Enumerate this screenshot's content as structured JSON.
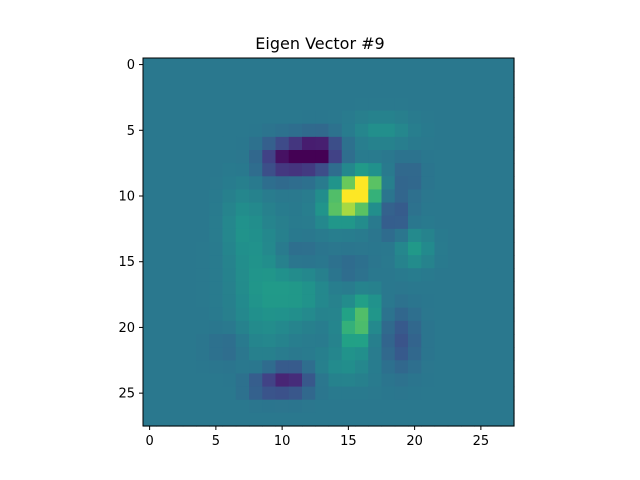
{
  "chart_data": {
    "type": "heatmap",
    "title": "Eigen Vector #9",
    "xlabel": "",
    "ylabel": "",
    "grid": false,
    "legend": "none",
    "colormap": "viridis",
    "image_size": [
      28,
      28
    ],
    "xlim": [
      -0.5,
      27.5
    ],
    "ylim": [
      27.5,
      -0.5
    ],
    "x_ticks": [
      0,
      5,
      10,
      15,
      20,
      25
    ],
    "y_ticks": [
      0,
      5,
      10,
      15,
      20,
      25
    ],
    "x_tick_labels": [
      "0",
      "5",
      "10",
      "15",
      "20",
      "25"
    ],
    "y_tick_labels": [
      "0",
      "5",
      "10",
      "15",
      "20",
      "25"
    ],
    "value_range": [
      -1,
      1
    ],
    "background_value": 0,
    "blobs": [
      {
        "row": 7.0,
        "col": 11.5,
        "value": -1.0,
        "sigma_r": 0.9,
        "sigma_c": 1.5
      },
      {
        "row": 6.5,
        "col": 13.0,
        "value": -0.55,
        "sigma_r": 0.8,
        "sigma_c": 1.0
      },
      {
        "row": 7.5,
        "col": 9.5,
        "value": -0.35,
        "sigma_r": 1.0,
        "sigma_c": 1.0
      },
      {
        "row": 10.0,
        "col": 15.5,
        "value": 1.0,
        "sigma_r": 1.1,
        "sigma_c": 1.1
      },
      {
        "row": 9.0,
        "col": 16.5,
        "value": 0.5,
        "sigma_r": 0.8,
        "sigma_c": 0.8
      },
      {
        "row": 11.0,
        "col": 14.0,
        "value": 0.4,
        "sigma_r": 1.0,
        "sigma_c": 1.0
      },
      {
        "row": 20.0,
        "col": 15.5,
        "value": 0.65,
        "sigma_r": 1.3,
        "sigma_c": 0.8
      },
      {
        "row": 18.5,
        "col": 16.5,
        "value": 0.35,
        "sigma_r": 1.0,
        "sigma_c": 0.7
      },
      {
        "row": 24.0,
        "col": 10.5,
        "value": -0.75,
        "sigma_r": 0.8,
        "sigma_c": 1.2
      },
      {
        "row": 24.5,
        "col": 8.5,
        "value": -0.3,
        "sigma_r": 0.7,
        "sigma_c": 1.0
      },
      {
        "row": 14.0,
        "col": 20.0,
        "value": 0.35,
        "sigma_r": 1.0,
        "sigma_c": 0.9
      },
      {
        "row": 11.5,
        "col": 18.5,
        "value": -0.35,
        "sigma_r": 1.2,
        "sigma_c": 0.8
      },
      {
        "row": 8.5,
        "col": 19.5,
        "value": -0.2,
        "sigma_r": 1.0,
        "sigma_c": 0.8
      },
      {
        "row": 21.0,
        "col": 19.0,
        "value": -0.35,
        "sigma_r": 1.6,
        "sigma_c": 0.9
      },
      {
        "row": 17.0,
        "col": 8.5,
        "value": 0.3,
        "sigma_r": 3.5,
        "sigma_c": 1.6
      },
      {
        "row": 17.5,
        "col": 11.5,
        "value": 0.28,
        "sigma_r": 1.5,
        "sigma_c": 1.5
      },
      {
        "row": 12.0,
        "col": 7.0,
        "value": 0.2,
        "sigma_r": 2.0,
        "sigma_c": 1.0
      },
      {
        "row": 14.5,
        "col": 11.0,
        "value": -0.2,
        "sigma_r": 0.8,
        "sigma_c": 1.2
      },
      {
        "row": 15.5,
        "col": 15.0,
        "value": -0.15,
        "sigma_r": 0.8,
        "sigma_c": 1.0
      },
      {
        "row": 5.0,
        "col": 17.5,
        "value": 0.25,
        "sigma_r": 0.8,
        "sigma_c": 1.5
      },
      {
        "row": 23.0,
        "col": 14.5,
        "value": 0.2,
        "sigma_r": 1.0,
        "sigma_c": 1.5
      },
      {
        "row": 21.5,
        "col": 6.0,
        "value": -0.15,
        "sigma_r": 1.0,
        "sigma_c": 1.0
      }
    ]
  }
}
